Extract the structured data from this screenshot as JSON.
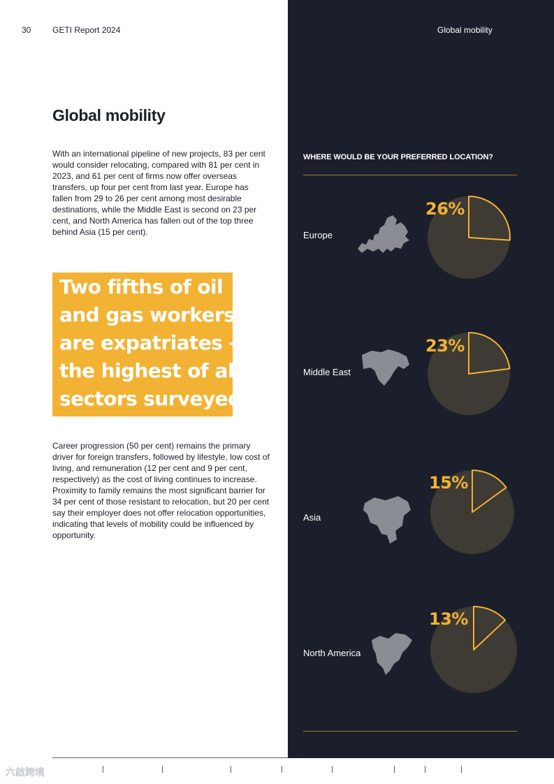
{
  "header": {
    "page_number": "30",
    "report_name": "GETI Report 2024",
    "section_name": "Global mobility"
  },
  "main": {
    "title": "Global mobility",
    "intro": "With an international pipeline of new projects, 83 per cent would consider relocating, compared with 81 per cent in 2023, and 61 per cent of firms now offer overseas transfers, up four per cent from last year. Europe has fallen from 29 to 26 per cent among most desirable destinations, while the Middle East is second on 23 per cent, and North America has fallen out of the top three behind Asia (15 per cent).",
    "pull_quote": [
      "Two fifths of oil",
      "and gas workers",
      "are expatriates -",
      "the highest of all",
      "sectors surveyed."
    ],
    "career": "Career progression (50 per cent) remains the primary driver for foreign transfers, followed by lifestyle, low cost of living, and remuneration (12 per cent and 9 per cent, respectively) as the cost of living continues to increase. Proximity to family remains the most significant barrier for 34 per cent of those resistant to relocation, but 20 per cent say their employer does not offer relocation opportunities, indicating that levels of mobility could be influenced by opportunity."
  },
  "chart": {
    "question": "WHERE WOULD BE YOUR PREFERRED LOCATION?"
  },
  "chart_data": {
    "type": "pie",
    "title": "WHERE WOULD BE YOUR PREFERRED LOCATION?",
    "categories": [
      "Europe",
      "Middle East",
      "Asia",
      "North America"
    ],
    "values": [
      26,
      23,
      15,
      13
    ],
    "value_labels": [
      "26%",
      "23%",
      "15%",
      "13%"
    ],
    "unit": "%",
    "colors": {
      "highlight": "#f2b233",
      "remainder": "#3e3a34",
      "background": "#1a1f2b"
    }
  },
  "watermark": "六啟跨境",
  "colors": {
    "accent": "#f2b233",
    "dark_panel": "#1a1f2b",
    "text": "#1b1f28"
  }
}
